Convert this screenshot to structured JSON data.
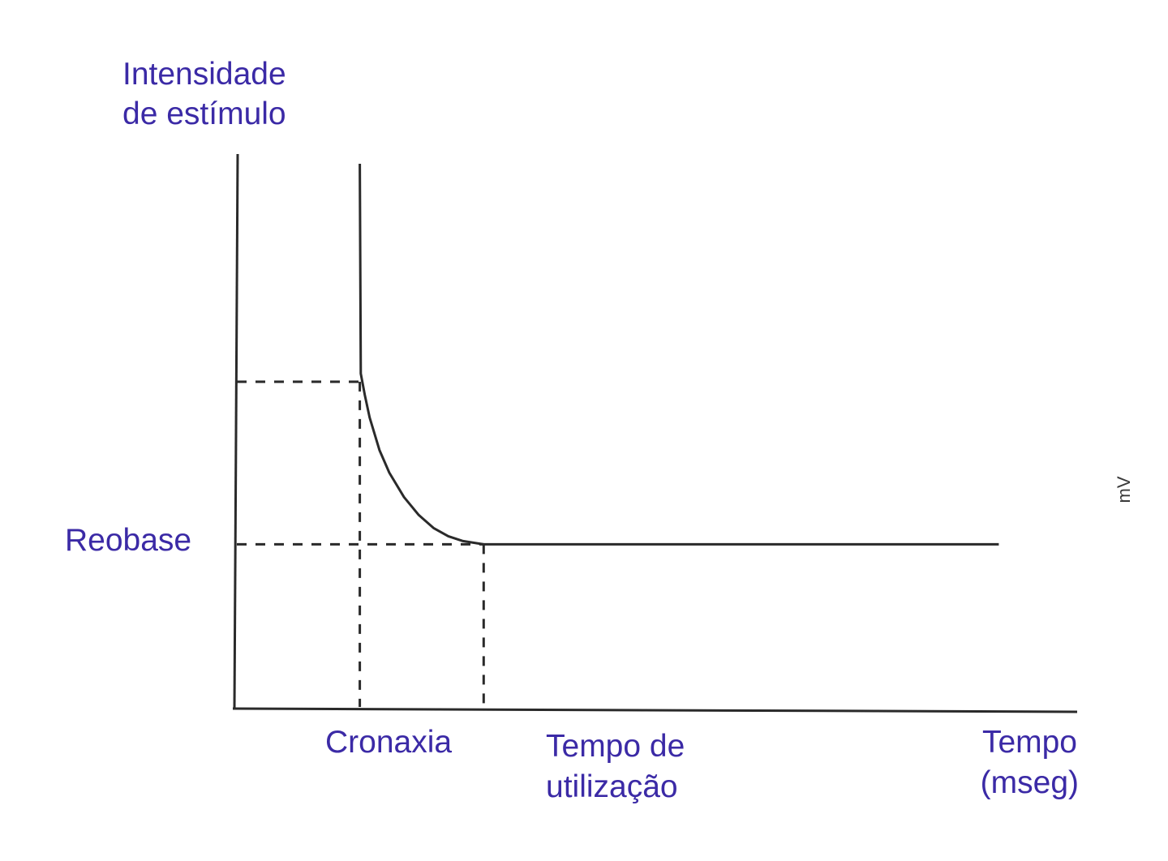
{
  "chart_data": {
    "type": "line",
    "title": "",
    "ylabel_lines": [
      "Intensidade",
      "de estímulo"
    ],
    "xlabel_lines": [
      "Tempo",
      "(mseg)"
    ],
    "y_marks": [
      {
        "label": "Reobase",
        "value": 1
      }
    ],
    "x_marks": [
      {
        "label_lines": [
          "Cronaxia"
        ],
        "value": 1
      },
      {
        "label_lines": [
          "Tempo de",
          "utilização"
        ],
        "value": 2.26
      }
    ],
    "chronaxie_intensity": 2,
    "series": [
      {
        "x": [
          1,
          1.01,
          1.05,
          1.1,
          1.2,
          1.3,
          1.45,
          1.6,
          1.75,
          1.9,
          2.05,
          2.26,
          3,
          4,
          5,
          6,
          7.5
        ],
        "y": [
          3.34,
          2.05,
          1.92,
          1.78,
          1.58,
          1.44,
          1.29,
          1.18,
          1.1,
          1.05,
          1.02,
          1,
          1,
          1,
          1,
          1,
          1
        ]
      }
    ],
    "xlim": [
      -2,
      8
    ],
    "ylim": [
      -0.02,
      3.4
    ],
    "grid": false,
    "legend": "none"
  },
  "side_text": "mV"
}
